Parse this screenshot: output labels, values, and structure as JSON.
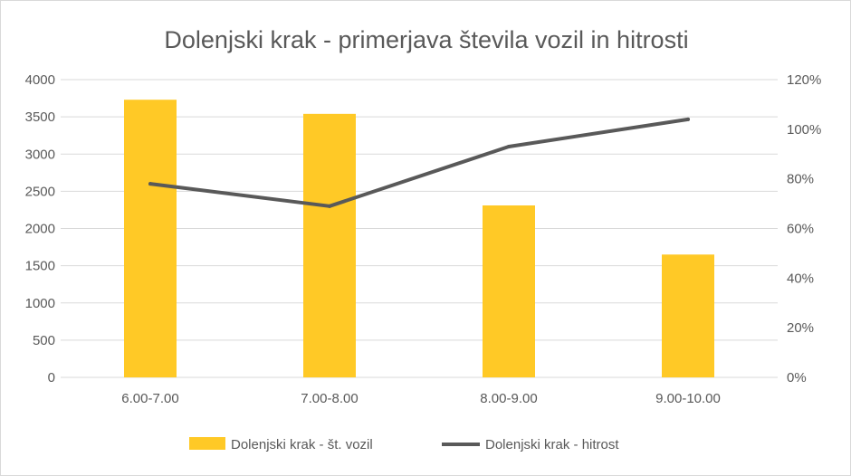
{
  "chart_data": {
    "type": "bar",
    "title": "Dolenjski krak - primerjava števila vozil in hitrosti",
    "xlabel": "",
    "ylabel": "",
    "categories": [
      "6.00-7.00",
      "7.00-8.00",
      "8.00-9.00",
      "9.00-10.00"
    ],
    "ylim": [
      0,
      4000
    ],
    "y_ticks": [
      "0",
      "500",
      "1000",
      "1500",
      "2000",
      "2500",
      "3000",
      "3500",
      "4000"
    ],
    "y2lim": [
      0,
      1.2
    ],
    "y2_ticks": [
      "0%",
      "20%",
      "40%",
      "60%",
      "80%",
      "100%",
      "120%"
    ],
    "grid": true,
    "legend_position": "bottom",
    "series": [
      {
        "name": "Dolenjski krak - št. vozil",
        "type": "bar",
        "axis": "left",
        "color": "#FFC926",
        "values": [
          3730,
          3540,
          2310,
          1650
        ]
      },
      {
        "name": "Dolenjski krak - hitrost",
        "type": "line",
        "axis": "right",
        "color": "#595959",
        "values": [
          0.78,
          0.69,
          0.93,
          1.04
        ]
      }
    ]
  }
}
